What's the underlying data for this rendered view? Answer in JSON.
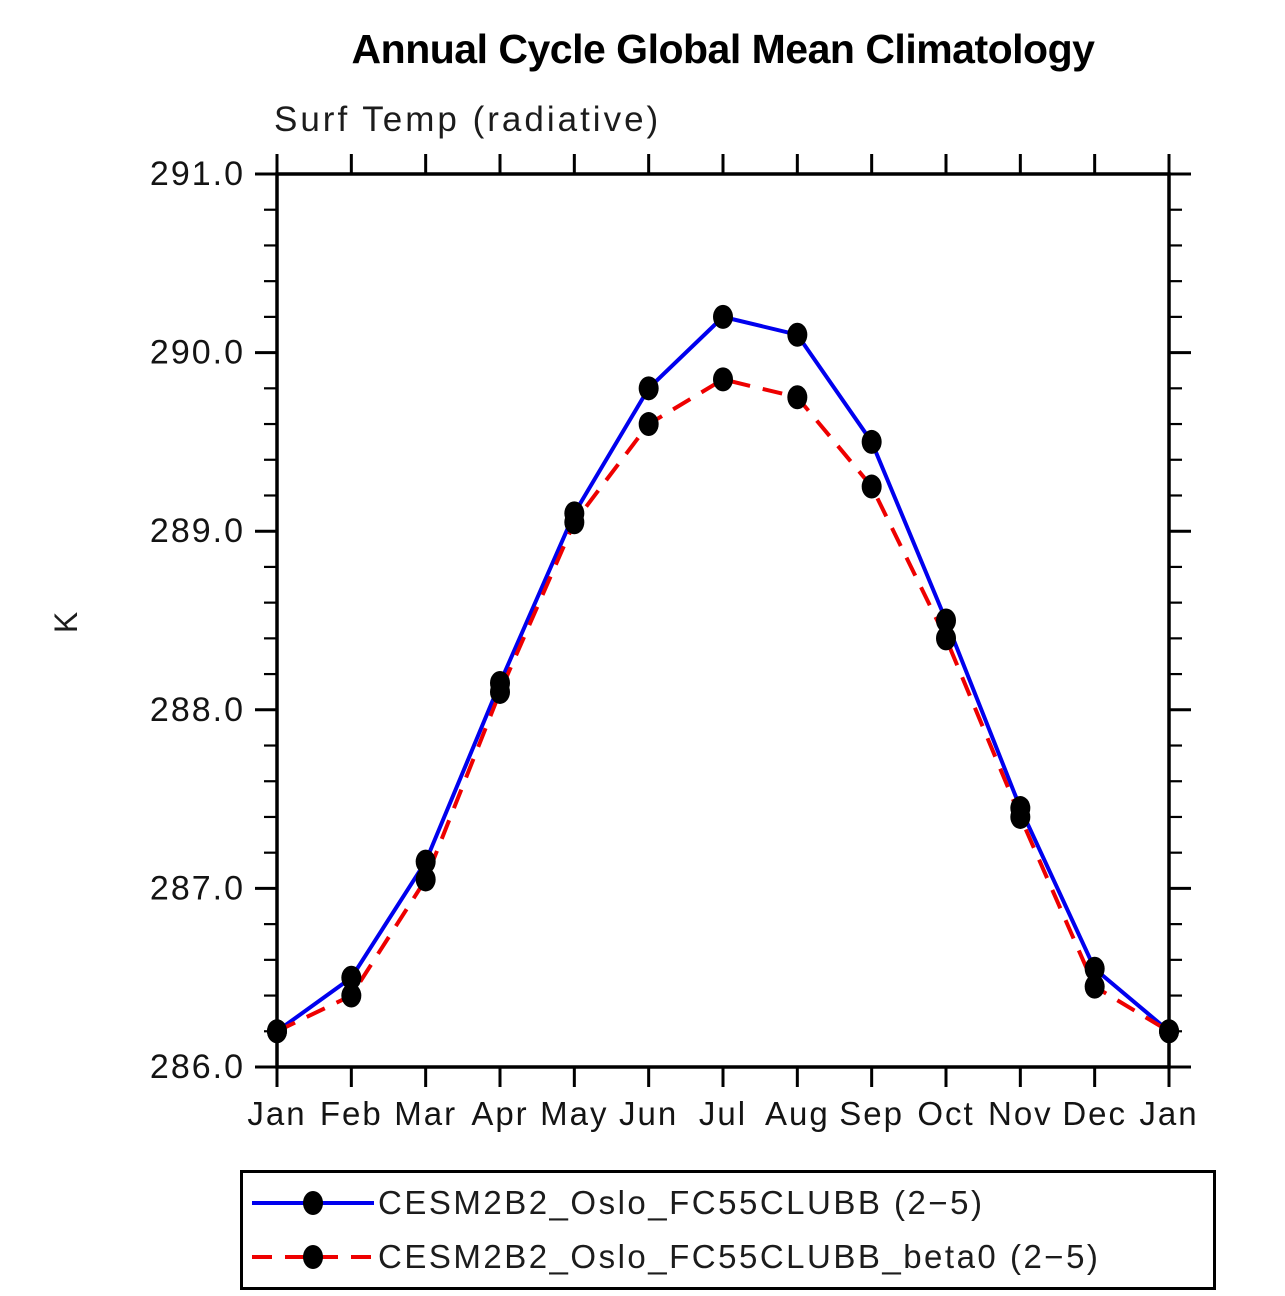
{
  "title": "Annual Cycle Global Mean Climatology",
  "chart_data": {
    "type": "line",
    "subtitle": "Surf Temp (radiative)",
    "ylabel": "K",
    "categories": [
      "Jan",
      "Feb",
      "Mar",
      "Apr",
      "May",
      "Jun",
      "Jul",
      "Aug",
      "Sep",
      "Oct",
      "Nov",
      "Dec",
      "Jan"
    ],
    "ylim": [
      286.0,
      291.0
    ],
    "ytick_major_interval": 1.0,
    "ytick_minor_interval": 0.2,
    "yticks": [
      {
        "value": 291.0,
        "label": "291.0"
      },
      {
        "value": 290.0,
        "label": "290.0"
      },
      {
        "value": 289.0,
        "label": "289.0"
      },
      {
        "value": 288.0,
        "label": "288.0"
      },
      {
        "value": 287.0,
        "label": "287.0"
      },
      {
        "value": 286.0,
        "label": "286.0"
      }
    ],
    "grid": false,
    "legend_position": "bottom",
    "series": [
      {
        "name": "CESM2B2_Oslo_FC55CLUBB (2−5)",
        "color": "#0000ee",
        "line_style": "solid",
        "marker": "filled-circle",
        "marker_color": "#000000",
        "values": [
          286.2,
          286.5,
          287.15,
          288.15,
          289.1,
          289.8,
          290.2,
          290.1,
          289.5,
          288.5,
          287.45,
          286.55,
          286.2
        ]
      },
      {
        "name": "CESM2B2_Oslo_FC55CLUBB_beta0 (2−5)",
        "color": "#ee0000",
        "line_style": "dashed",
        "marker": "filled-circle",
        "marker_color": "#000000",
        "values": [
          286.2,
          286.4,
          287.05,
          288.1,
          289.05,
          289.6,
          289.85,
          289.75,
          289.25,
          288.4,
          287.4,
          286.45,
          286.2
        ]
      }
    ]
  }
}
